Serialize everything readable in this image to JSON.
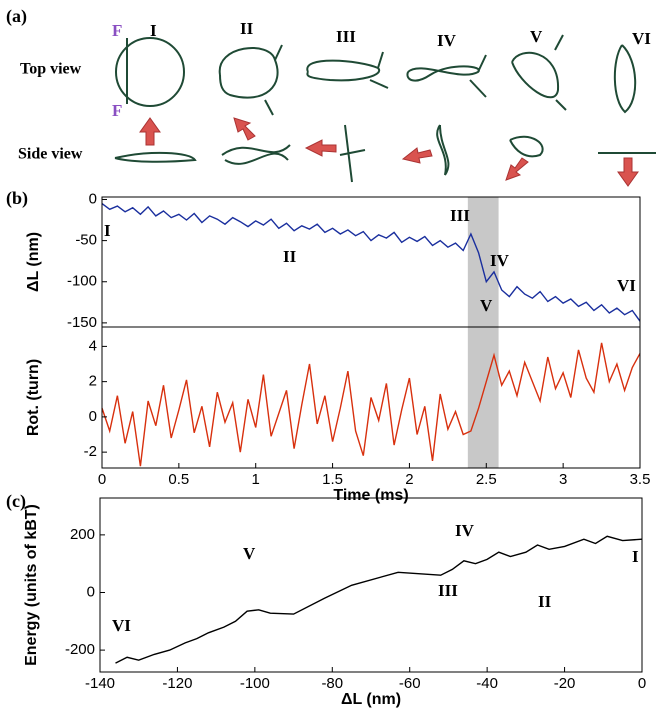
{
  "panel_a": {
    "label": "(a)",
    "top_view": "Top view",
    "side_view": "Side view",
    "force_label": "F",
    "stages": [
      "I",
      "II",
      "III",
      "IV",
      "V",
      "VI"
    ]
  },
  "chart_data": [
    {
      "type": "line",
      "panel_label": "(b)",
      "ylabel": "ΔL (nm)",
      "color": "#1a2f9e",
      "xlim": [
        0,
        3.5
      ],
      "ylim": [
        -155,
        3
      ],
      "yticks": [
        0,
        -50,
        -100,
        -150
      ],
      "highlight": [
        2.38,
        2.58
      ],
      "annotations": [
        "I",
        "II",
        "III",
        "IV",
        "V",
        "VI"
      ],
      "x": [
        0,
        0.05,
        0.1,
        0.15,
        0.2,
        0.25,
        0.3,
        0.35,
        0.4,
        0.45,
        0.5,
        0.55,
        0.6,
        0.65,
        0.7,
        0.75,
        0.8,
        0.85,
        0.9,
        0.95,
        1,
        1.05,
        1.1,
        1.15,
        1.2,
        1.25,
        1.3,
        1.35,
        1.4,
        1.45,
        1.5,
        1.55,
        1.6,
        1.65,
        1.7,
        1.75,
        1.8,
        1.85,
        1.9,
        1.95,
        2,
        2.05,
        2.1,
        2.15,
        2.2,
        2.25,
        2.3,
        2.35,
        2.4,
        2.45,
        2.5,
        2.55,
        2.6,
        2.65,
        2.7,
        2.75,
        2.8,
        2.85,
        2.9,
        2.95,
        3,
        3.05,
        3.1,
        3.15,
        3.2,
        3.25,
        3.3,
        3.35,
        3.4,
        3.45,
        3.5
      ],
      "values": [
        -5,
        -12,
        -8,
        -15,
        -10,
        -18,
        -9,
        -20,
        -14,
        -22,
        -18,
        -25,
        -17,
        -28,
        -20,
        -24,
        -30,
        -22,
        -27,
        -33,
        -26,
        -31,
        -24,
        -35,
        -29,
        -38,
        -32,
        -36,
        -30,
        -40,
        -35,
        -42,
        -37,
        -44,
        -39,
        -50,
        -43,
        -47,
        -40,
        -52,
        -46,
        -51,
        -45,
        -56,
        -50,
        -58,
        -53,
        -62,
        -42,
        -65,
        -100,
        -88,
        -110,
        -118,
        -106,
        -115,
        -120,
        -112,
        -124,
        -118,
        -126,
        -121,
        -130,
        -125,
        -135,
        -128,
        -138,
        -132,
        -140,
        -135,
        -148
      ]
    },
    {
      "type": "line",
      "ylabel": "Rot. (turn)",
      "xlabel": "Time (ms)",
      "color": "#d8300e",
      "xlim": [
        0,
        3.5
      ],
      "ylim": [
        -2.9,
        5.1
      ],
      "yticks": [
        -2,
        0,
        2,
        4
      ],
      "xticks": [
        0,
        0.5,
        1,
        1.5,
        2,
        2.5,
        3,
        3.5
      ],
      "x": [
        0,
        0.05,
        0.1,
        0.15,
        0.2,
        0.25,
        0.3,
        0.35,
        0.4,
        0.45,
        0.5,
        0.55,
        0.6,
        0.65,
        0.7,
        0.75,
        0.8,
        0.85,
        0.9,
        0.95,
        1,
        1.05,
        1.1,
        1.15,
        1.2,
        1.25,
        1.3,
        1.35,
        1.4,
        1.45,
        1.5,
        1.55,
        1.6,
        1.65,
        1.7,
        1.75,
        1.8,
        1.85,
        1.9,
        1.95,
        2,
        2.05,
        2.1,
        2.15,
        2.2,
        2.25,
        2.3,
        2.35,
        2.4,
        2.45,
        2.5,
        2.55,
        2.6,
        2.65,
        2.7,
        2.75,
        2.8,
        2.85,
        2.9,
        2.95,
        3,
        3.05,
        3.1,
        3.15,
        3.2,
        3.25,
        3.3,
        3.35,
        3.4,
        3.45,
        3.5
      ],
      "values": [
        0.5,
        -0.8,
        1.2,
        -1.5,
        0.3,
        -2.8,
        0.9,
        -0.5,
        1.8,
        -1.2,
        0.4,
        2.1,
        -0.9,
        0.6,
        -1.7,
        1.4,
        -0.3,
        0.8,
        -2.0,
        1.0,
        -0.6,
        2.4,
        -1.1,
        0.2,
        1.5,
        -1.8,
        0.7,
        3.0,
        -0.4,
        1.2,
        -1.4,
        0.5,
        2.6,
        -0.8,
        -2.2,
        1.1,
        -0.2,
        1.9,
        -1.6,
        0.4,
        2.2,
        -1.0,
        0.6,
        -2.5,
        1.3,
        -0.7,
        0.3,
        -1.0,
        -0.8,
        0.5,
        2.0,
        3.5,
        1.8,
        2.6,
        1.2,
        3.1,
        2.0,
        0.9,
        3.4,
        1.6,
        2.5,
        1.1,
        3.8,
        2.2,
        1.4,
        4.2,
        2.0,
        3.0,
        1.5,
        2.8,
        3.6
      ]
    },
    {
      "type": "line",
      "panel_label": "(c)",
      "ylabel": "Energy (units of kBT)",
      "xlabel": "ΔL (nm)",
      "color": "#000000",
      "xlim": [
        -140,
        0
      ],
      "ylim": [
        -276,
        328
      ],
      "yticks": [
        -200,
        0,
        200
      ],
      "xticks": [
        -140,
        -120,
        -100,
        -80,
        -60,
        -40,
        -20,
        0
      ],
      "annotations": [
        "I",
        "II",
        "III",
        "IV",
        "V",
        "VI"
      ],
      "x": [
        0,
        -5,
        -9,
        -12,
        -15,
        -20,
        -24,
        -27,
        -30,
        -34,
        -37,
        -40,
        -43,
        -46,
        -49,
        -52,
        -63,
        -75,
        -82,
        -90,
        -96,
        -99,
        -102,
        -105,
        -108,
        -112,
        -115,
        -118,
        -122,
        -126,
        -130,
        -133,
        -136
      ],
      "values": [
        185,
        180,
        195,
        170,
        185,
        160,
        150,
        165,
        140,
        125,
        140,
        115,
        100,
        110,
        80,
        60,
        70,
        25,
        -20,
        -75,
        -72,
        -60,
        -65,
        -100,
        -120,
        -140,
        -160,
        -175,
        -200,
        -215,
        -235,
        -225,
        -245
      ]
    }
  ]
}
